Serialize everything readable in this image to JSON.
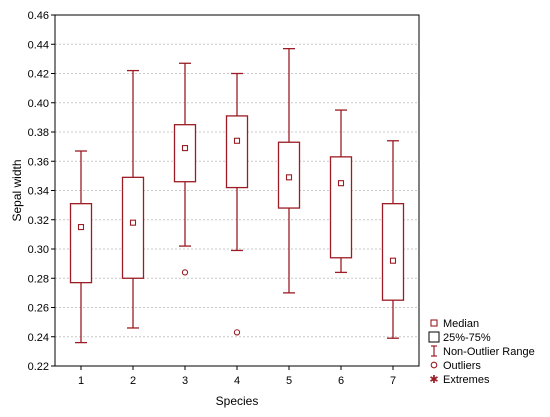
{
  "chart_data": {
    "type": "boxplot",
    "xlabel": "Species",
    "ylabel": "Sepal width",
    "ylim": [
      0.22,
      0.46
    ],
    "yticks": [
      0.22,
      0.24,
      0.26,
      0.28,
      0.3,
      0.32,
      0.34,
      0.36,
      0.38,
      0.4,
      0.42,
      0.44,
      0.46
    ],
    "ytick_labels": [
      "0.22",
      "0.24",
      "0.26",
      "0.28",
      "0.30",
      "0.32",
      "0.34",
      "0.36",
      "0.38",
      "0.40",
      "0.42",
      "0.44",
      "0.46"
    ],
    "categories": [
      "1",
      "2",
      "3",
      "4",
      "5",
      "6",
      "7"
    ],
    "grid": true,
    "legend_position": "bottom-right outside plot",
    "colors": {
      "series": "#9b1c24",
      "grid": "#c8c8c8",
      "frame": "#000000"
    },
    "boxes": [
      {
        "category": "1",
        "median": 0.315,
        "q1": 0.277,
        "q3": 0.331,
        "whisker_low": 0.236,
        "whisker_high": 0.367,
        "outliers": [],
        "extremes": []
      },
      {
        "category": "2",
        "median": 0.318,
        "q1": 0.28,
        "q3": 0.349,
        "whisker_low": 0.246,
        "whisker_high": 0.422,
        "outliers": [],
        "extremes": []
      },
      {
        "category": "3",
        "median": 0.369,
        "q1": 0.346,
        "q3": 0.385,
        "whisker_low": 0.302,
        "whisker_high": 0.427,
        "outliers": [
          0.284
        ],
        "extremes": []
      },
      {
        "category": "4",
        "median": 0.374,
        "q1": 0.342,
        "q3": 0.391,
        "whisker_low": 0.299,
        "whisker_high": 0.42,
        "outliers": [
          0.243
        ],
        "extremes": []
      },
      {
        "category": "5",
        "median": 0.349,
        "q1": 0.328,
        "q3": 0.373,
        "whisker_low": 0.27,
        "whisker_high": 0.437,
        "outliers": [],
        "extremes": []
      },
      {
        "category": "6",
        "median": 0.345,
        "q1": 0.294,
        "q3": 0.363,
        "whisker_low": 0.284,
        "whisker_high": 0.395,
        "outliers": [],
        "extremes": []
      },
      {
        "category": "7",
        "median": 0.292,
        "q1": 0.265,
        "q3": 0.331,
        "whisker_low": 0.239,
        "whisker_high": 0.374,
        "outliers": [],
        "extremes": []
      }
    ],
    "legend": [
      {
        "symbol": "median-square-icon",
        "label": "Median"
      },
      {
        "symbol": "box-rect-icon",
        "label": "25%-75%"
      },
      {
        "symbol": "whisker-range-icon",
        "label": "Non-Outlier Range"
      },
      {
        "symbol": "outlier-circle-icon",
        "label": "Outliers"
      },
      {
        "symbol": "extreme-asterisk-icon",
        "label": "Extremes"
      }
    ]
  }
}
